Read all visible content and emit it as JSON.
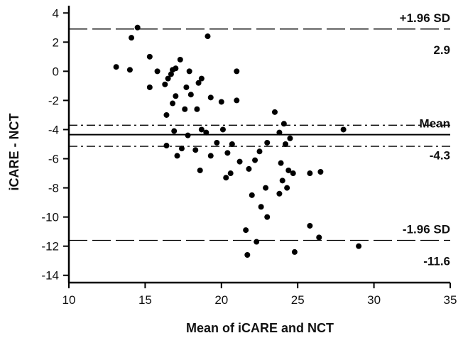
{
  "chart_data": {
    "type": "scatter",
    "title": "",
    "xlabel": "Mean of iCARE and NCT",
    "ylabel": "iCARE - NCT",
    "xlim": [
      10,
      35
    ],
    "ylim": [
      -14.5,
      4.5
    ],
    "x_ticks": [
      10,
      15,
      20,
      25,
      30,
      35
    ],
    "y_ticks": [
      4,
      2,
      0,
      -2,
      -4,
      -6,
      -8,
      -10,
      -12,
      -14
    ],
    "grid": false,
    "legend": "none",
    "colors": {
      "points": "#000000",
      "lines": "#000000"
    },
    "reference_lines": [
      {
        "label": "+1.96 SD",
        "value_label": "2.9",
        "y": 2.9,
        "style": "dashed"
      },
      {
        "label": "Mean",
        "value_label": "-4.3",
        "y": -4.35,
        "style": "solid"
      },
      {
        "label": "",
        "value_label": "",
        "y": -3.7,
        "style": "dashdot"
      },
      {
        "label": "",
        "value_label": "",
        "y": -5.15,
        "style": "dashdot"
      },
      {
        "label": "-1.96 SD",
        "value_label": "-11.6",
        "y": -11.6,
        "style": "dashed"
      }
    ],
    "points": [
      [
        13.1,
        0.3
      ],
      [
        14.0,
        0.1
      ],
      [
        14.1,
        2.3
      ],
      [
        14.5,
        3.0
      ],
      [
        19.1,
        2.4
      ],
      [
        15.3,
        1.0
      ],
      [
        15.3,
        -1.1
      ],
      [
        15.8,
        0.0
      ],
      [
        16.3,
        -0.9
      ],
      [
        16.5,
        -0.5
      ],
      [
        16.7,
        -0.2
      ],
      [
        16.8,
        0.1
      ],
      [
        17.0,
        0.2
      ],
      [
        17.3,
        0.8
      ],
      [
        16.4,
        -3.0
      ],
      [
        16.8,
        -2.2
      ],
      [
        17.0,
        -1.7
      ],
      [
        17.7,
        -1.1
      ],
      [
        17.9,
        0.0
      ],
      [
        18.0,
        -1.6
      ],
      [
        18.5,
        -0.8
      ],
      [
        18.7,
        -0.5
      ],
      [
        18.4,
        -2.6
      ],
      [
        17.6,
        -2.6
      ],
      [
        19.3,
        -1.8
      ],
      [
        20.0,
        -2.1
      ],
      [
        21.0,
        0.0
      ],
      [
        21.0,
        -2.0
      ],
      [
        16.9,
        -4.1
      ],
      [
        17.8,
        -4.4
      ],
      [
        18.7,
        -4.0
      ],
      [
        19.0,
        -4.2
      ],
      [
        19.7,
        -4.9
      ],
      [
        20.1,
        -4.0
      ],
      [
        20.4,
        -5.6
      ],
      [
        20.7,
        -5.0
      ],
      [
        16.4,
        -5.1
      ],
      [
        17.1,
        -5.8
      ],
      [
        17.4,
        -5.3
      ],
      [
        18.3,
        -5.4
      ],
      [
        19.3,
        -5.8
      ],
      [
        20.3,
        -7.3
      ],
      [
        20.6,
        -7.0
      ],
      [
        21.2,
        -6.2
      ],
      [
        21.8,
        -6.7
      ],
      [
        22.2,
        -6.1
      ],
      [
        22.5,
        -5.5
      ],
      [
        23.0,
        -4.9
      ],
      [
        18.6,
        -6.8
      ],
      [
        22.0,
        -8.5
      ],
      [
        22.9,
        -8.0
      ],
      [
        23.5,
        -2.8
      ],
      [
        23.8,
        -4.2
      ],
      [
        24.1,
        -3.6
      ],
      [
        24.5,
        -4.6
      ],
      [
        24.2,
        -5.0
      ],
      [
        23.9,
        -6.3
      ],
      [
        24.4,
        -6.8
      ],
      [
        24.0,
        -7.5
      ],
      [
        24.3,
        -8.0
      ],
      [
        24.7,
        -7.0
      ],
      [
        23.8,
        -8.4
      ],
      [
        25.8,
        -7.0
      ],
      [
        26.5,
        -6.9
      ],
      [
        28.0,
        -4.0
      ],
      [
        22.6,
        -9.3
      ],
      [
        23.0,
        -10.0
      ],
      [
        21.6,
        -10.9
      ],
      [
        22.3,
        -11.7
      ],
      [
        21.7,
        -12.6
      ],
      [
        24.8,
        -12.4
      ],
      [
        25.8,
        -10.6
      ],
      [
        26.4,
        -11.4
      ],
      [
        29.0,
        -12.0
      ]
    ]
  }
}
